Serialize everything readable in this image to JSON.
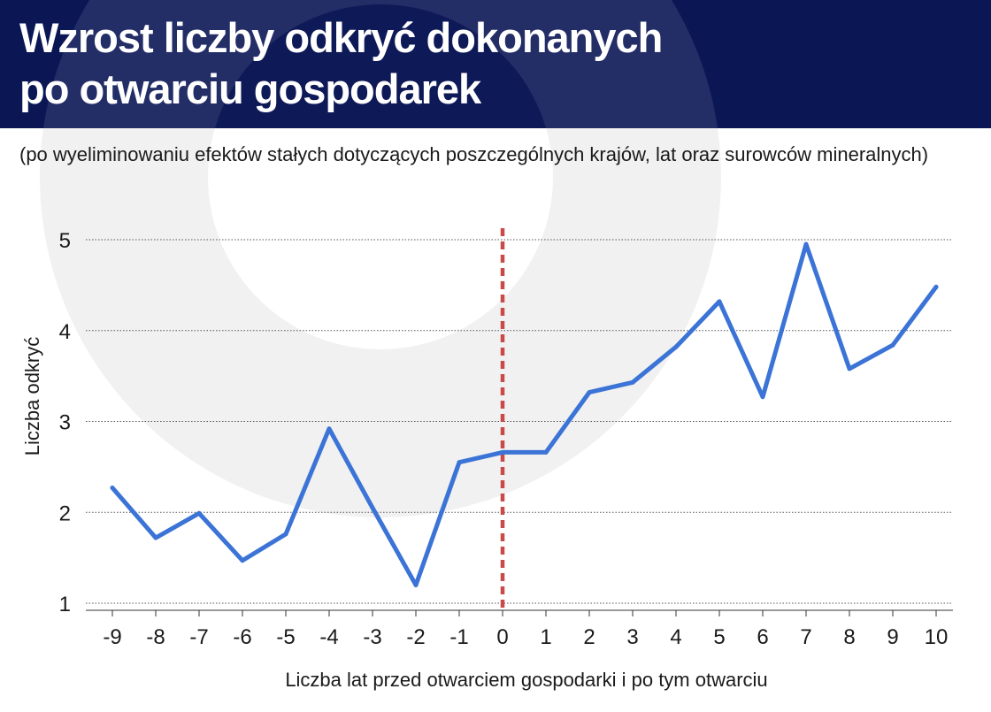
{
  "header": {
    "title_line1": "Wzrost liczby odkryć dokonanych",
    "title_line2": "po otwarciu gospodarek"
  },
  "subtitle": "(po wyeliminowaniu efektów stałych dotyczących poszczególnych krajów, lat oraz surowców mineralnych)",
  "colors": {
    "header_bg": "#0b1655",
    "line": "#3b74d6",
    "reference_line": "#c94a4a",
    "grid": "#555555"
  },
  "chart_data": {
    "type": "line",
    "title": "Wzrost liczby odkryć dokonanych po otwarciu gospodarek",
    "subtitle": "(po wyeliminowaniu efektów stałych dotyczących poszczególnych krajów, lat oraz surowców mineralnych)",
    "xlabel": "Liczba lat przed otwarciem gospodarki i po tym otwarciu",
    "ylabel": "Liczba odkryć",
    "x": [
      -9,
      -8,
      -7,
      -6,
      -5,
      -4,
      -3,
      -2,
      -1,
      0,
      1,
      2,
      3,
      4,
      5,
      6,
      7,
      8,
      9,
      10
    ],
    "x_tick_labels": [
      "-9",
      "-8",
      "-7",
      "-6",
      "-5",
      "-4",
      "-3",
      "-2",
      "-1",
      "0",
      "1",
      "2",
      "3",
      "4",
      "5",
      "6",
      "7",
      "8",
      "9",
      "10"
    ],
    "series": [
      {
        "values": [
          2.27,
          1.72,
          1.99,
          1.47,
          1.76,
          2.92,
          2.05,
          1.2,
          2.55,
          2.66,
          2.66,
          3.32,
          3.43,
          3.82,
          4.32,
          3.27,
          4.95,
          3.58,
          3.84,
          4.48
        ]
      }
    ],
    "reference_line_x": 0,
    "ylim": [
      1,
      5
    ],
    "y_ticks": [
      1,
      2,
      3,
      4,
      5
    ],
    "y_tick_labels": [
      "1",
      "2",
      "3",
      "4",
      "5"
    ],
    "grid": true
  }
}
